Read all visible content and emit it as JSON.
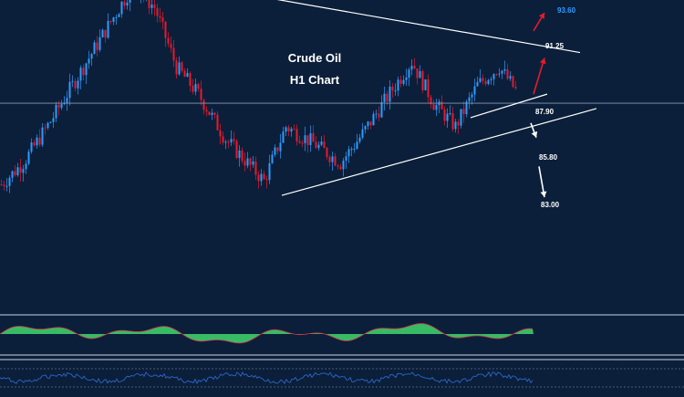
{
  "chart_data": {
    "type": "candlestick",
    "title": "Crude Oil",
    "subtitle": "H1 Chart",
    "price_levels": [
      {
        "label": "93.60",
        "value": 93.6,
        "color": "#2e9bff"
      },
      {
        "label": "91.25",
        "value": 91.25,
        "color": "#ffffff"
      },
      {
        "label": "87.90",
        "value": 87.9,
        "color": "#ffffff"
      },
      {
        "label": "85.80",
        "value": 85.8,
        "color": "#ffffff"
      },
      {
        "label": "83.00",
        "value": 83.0,
        "color": "#ffffff"
      }
    ],
    "horizontal_level": 88.5,
    "price_path": [
      {
        "t": 0,
        "p": 84.0
      },
      {
        "t": 8,
        "p": 85.2
      },
      {
        "t": 18,
        "p": 87.5
      },
      {
        "t": 30,
        "p": 90.5
      },
      {
        "t": 42,
        "p": 93.5
      },
      {
        "t": 48,
        "p": 95.0
      },
      {
        "t": 56,
        "p": 93.8
      },
      {
        "t": 64,
        "p": 90.5
      },
      {
        "t": 72,
        "p": 89.0
      },
      {
        "t": 82,
        "p": 86.5
      },
      {
        "t": 96,
        "p": 84.2
      },
      {
        "t": 104,
        "p": 87.2
      },
      {
        "t": 114,
        "p": 86.3
      },
      {
        "t": 124,
        "p": 85.2
      },
      {
        "t": 132,
        "p": 86.8
      },
      {
        "t": 144,
        "p": 89.5
      },
      {
        "t": 150,
        "p": 90.8
      },
      {
        "t": 158,
        "p": 88.5
      },
      {
        "t": 166,
        "p": 87.2
      },
      {
        "t": 174,
        "p": 89.5
      },
      {
        "t": 182,
        "p": 90.5
      },
      {
        "t": 188,
        "p": 89.2
      }
    ],
    "trendlines": [
      {
        "name": "upper-resistance",
        "from": {
          "t": 12,
          "p": 96.6
        },
        "to": {
          "t": 212,
          "p": 91.3
        }
      },
      {
        "name": "lower-support",
        "from": {
          "t": 103,
          "p": 83.4
        },
        "to": {
          "t": 218,
          "p": 88.2
        }
      },
      {
        "name": "short-support",
        "from": {
          "t": 172,
          "p": 87.7
        },
        "to": {
          "t": 200,
          "p": 89.0
        }
      }
    ],
    "arrows": [
      {
        "color": "#e8192c",
        "from": {
          "t": 195,
          "p": 89.0
        },
        "to": {
          "t": 199,
          "p": 91.0
        }
      },
      {
        "color": "#e8192c",
        "from": {
          "t": 195,
          "p": 92.5
        },
        "to": {
          "t": 199,
          "p": 93.5
        }
      },
      {
        "color": "#ffffff",
        "from": {
          "t": 194,
          "p": 87.4
        },
        "to": {
          "t": 196,
          "p": 86.6
        }
      },
      {
        "color": "#ffffff",
        "from": {
          "t": 197,
          "p": 85.0
        },
        "to": {
          "t": 199,
          "p": 83.3
        }
      }
    ],
    "oscillator": {
      "type": "histogram",
      "color": "#3dcc6a"
    },
    "rsi": {
      "type": "line",
      "color": "#2e6fd8"
    },
    "grid": false,
    "colors": {
      "background": "#0b1f3a",
      "bull": "#2e9bff",
      "bear": "#e8192c",
      "line": "#ffffff"
    }
  }
}
